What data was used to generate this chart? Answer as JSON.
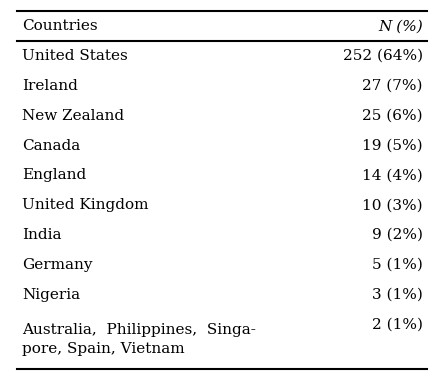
{
  "header": [
    "Countries",
    "N (%)"
  ],
  "rows": [
    [
      "United States",
      "252 (64%)"
    ],
    [
      "Ireland",
      "27 (7%)"
    ],
    [
      "New Zealand",
      "25 (6%)"
    ],
    [
      "Canada",
      "19 (5%)"
    ],
    [
      "England",
      "14 (4%)"
    ],
    [
      "United Kingdom",
      "10 (3%)"
    ],
    [
      "India",
      "9 (2%)"
    ],
    [
      "Germany",
      "5 (1%)"
    ],
    [
      "Nigeria",
      "3 (1%)"
    ],
    [
      "Australia,  Philippines,  Singa-\npore, Spain, Vietnam",
      "2 (1%)"
    ]
  ],
  "bg_color": "#ffffff",
  "text_color": "#000000",
  "header_color": "#000000",
  "line_color": "#000000",
  "font_size": 11,
  "header_font_size": 11
}
